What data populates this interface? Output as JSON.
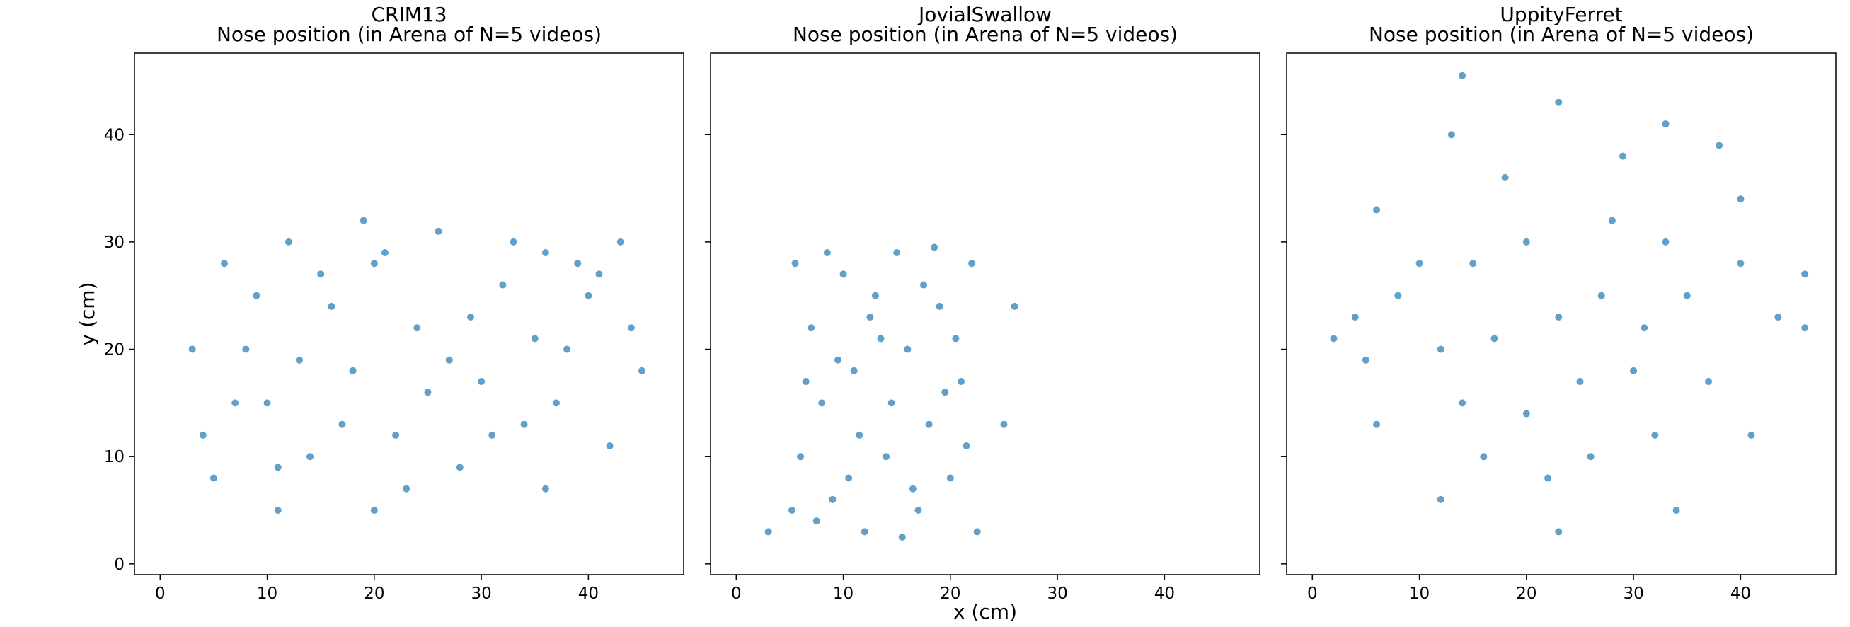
{
  "chart_data": [
    {
      "type": "scatter",
      "title": "CRIM13",
      "subtitle": "Nose position (in Arena of N=5 videos)",
      "y_label": "y (cm)",
      "color": "#1f77b4",
      "xlim": [
        -2.4,
        48.9
      ],
      "ylim": [
        -1.0,
        47.6
      ],
      "xticks": [
        0,
        10,
        20,
        30,
        40
      ],
      "yticks": [
        0,
        10,
        20,
        30,
        40
      ],
      "x": [
        4,
        6,
        8,
        10,
        12,
        14,
        16,
        18,
        20,
        22,
        24,
        26,
        28,
        30,
        32,
        34,
        36,
        38,
        40,
        42,
        44,
        5,
        9,
        13,
        17,
        21,
        25,
        29,
        33,
        37,
        41,
        45,
        3,
        7,
        11,
        15,
        19,
        23,
        27,
        31,
        35,
        39,
        43,
        20,
        11,
        36
      ],
      "values": [
        12,
        28,
        20,
        15,
        30,
        10,
        24,
        18,
        28,
        12,
        22,
        31,
        9,
        17,
        26,
        13,
        29,
        20,
        25,
        11,
        22,
        8,
        25,
        19,
        13,
        29,
        16,
        23,
        30,
        15,
        27,
        18,
        20,
        15,
        9,
        27,
        32,
        7,
        19,
        12,
        21,
        28,
        30,
        5,
        5,
        7
      ]
    },
    {
      "type": "scatter",
      "title": "JovialSwallow",
      "subtitle": "Nose position (in Arena of N=5 videos)",
      "x_label": "x (cm)",
      "color": "#1f77b4",
      "xlim": [
        -2.4,
        48.9
      ],
      "ylim": [
        -1.0,
        47.6
      ],
      "xticks": [
        0,
        10,
        20,
        30,
        40
      ],
      "yticks": [
        0,
        10,
        20,
        30,
        40
      ],
      "x": [
        5.5,
        7,
        8,
        9,
        10,
        11,
        12,
        13,
        14,
        15,
        16,
        17,
        18,
        19,
        20,
        21,
        22,
        22.5,
        6,
        7.5,
        9.5,
        11.5,
        13.5,
        15.5,
        17.5,
        19.5,
        21.5,
        6.5,
        8.5,
        10.5,
        12.5,
        14.5,
        16.5,
        18.5,
        20.5,
        5.2,
        26,
        25,
        3
      ],
      "values": [
        28,
        22,
        15,
        6,
        27,
        18,
        3,
        25,
        10,
        29,
        20,
        5,
        13,
        24,
        8,
        17,
        28,
        3,
        10,
        4,
        19,
        12,
        21,
        2.5,
        26,
        16,
        11,
        17,
        29,
        8,
        23,
        15,
        7,
        29.5,
        21,
        5,
        24,
        13,
        3
      ]
    },
    {
      "type": "scatter",
      "title": "UppityFerret",
      "subtitle": "Nose position (in Arena of N=5 videos)",
      "color": "#1f77b4",
      "xlim": [
        -2.4,
        48.9
      ],
      "ylim": [
        -1.0,
        47.6
      ],
      "xticks": [
        0,
        10,
        20,
        30,
        40
      ],
      "yticks": [
        0,
        10,
        20,
        30,
        40
      ],
      "x": [
        43.5,
        40,
        33,
        23,
        13,
        6,
        4,
        6,
        12,
        23,
        34,
        41,
        46,
        46,
        5,
        38,
        23,
        15,
        30,
        20,
        28,
        12,
        35,
        18,
        26,
        32,
        10,
        37,
        16,
        29,
        20,
        25,
        33,
        8,
        14,
        40,
        31,
        22,
        27,
        17,
        14,
        2
      ],
      "values": [
        23,
        34,
        41,
        43,
        40,
        33,
        23,
        13,
        6,
        3,
        5,
        12,
        22,
        27,
        19,
        39,
        23,
        28,
        18,
        14,
        32,
        20,
        25,
        36,
        10,
        12,
        28,
        17,
        10,
        38,
        30,
        17,
        30,
        25,
        15,
        28,
        22,
        8,
        25,
        21,
        45.5,
        21
      ]
    }
  ]
}
